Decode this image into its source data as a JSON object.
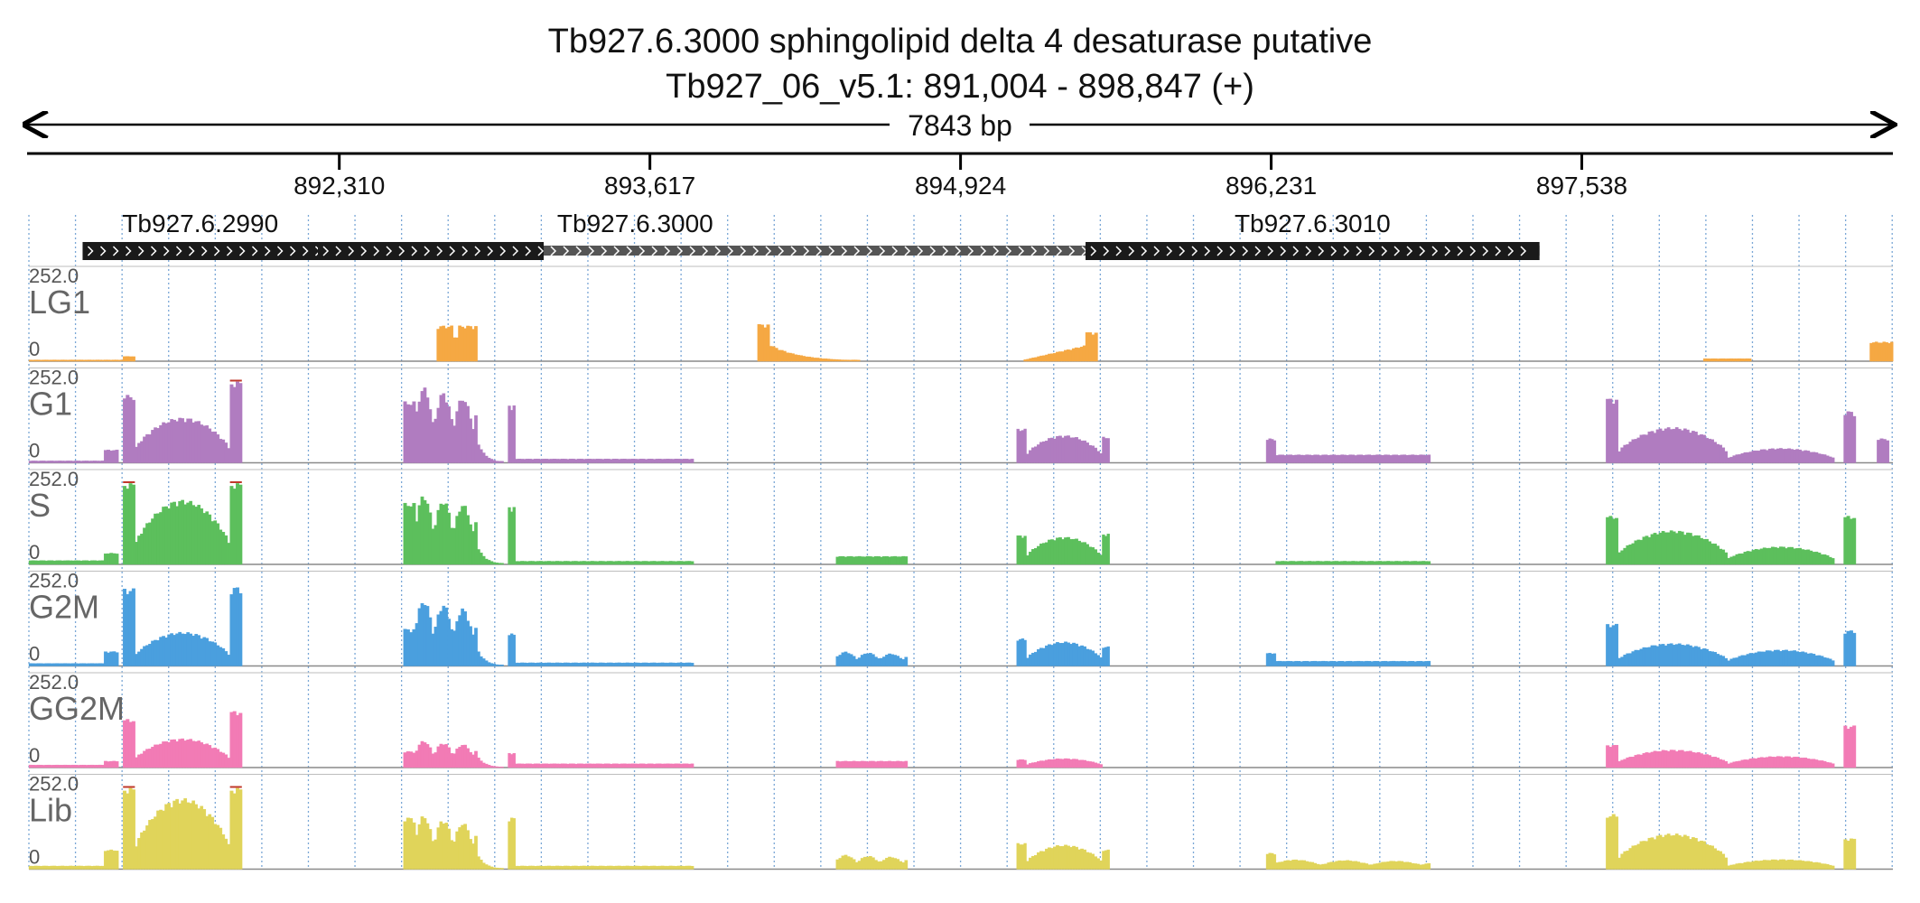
{
  "header": {
    "title": "Tb927.6.3000  sphingolipid delta 4 desaturase  putative",
    "location": "Tb927_06_v5.1: 891,004 - 898,847 (+)",
    "span_label": "7843 bp"
  },
  "ruler": {
    "ticks": [
      "892,310",
      "893,617",
      "894,924",
      "896,231",
      "897,538"
    ],
    "tick_values": [
      892310,
      893617,
      894924,
      896231,
      897538
    ]
  },
  "genes": [
    {
      "name": "Tb927.6.2990",
      "start": 891230,
      "end": 892320,
      "cds_start": 891230,
      "cds_end": 892220,
      "strand": "+"
    },
    {
      "name": "Tb927.6.3000",
      "start": 892220,
      "end": 895690,
      "cds_start": 892220,
      "cds_end": 893170,
      "strand": "+"
    },
    {
      "name": "Tb927.6.3010",
      "start": 895450,
      "end": 897360,
      "cds_start": 895450,
      "cds_end": 897360,
      "strand": "+"
    }
  ],
  "colors": {
    "LG1": "#f5a843",
    "G1": "#b07cc0",
    "S": "#5cbf5c",
    "G2M": "#4a9fde",
    "GG2M": "#f27bb5",
    "Lib": "#e0d45a",
    "gene": "#1a1a1a",
    "utr": "#555555",
    "grid": "#7aa7d6"
  },
  "chart_data": {
    "type": "area",
    "region": {
      "chrom": "Tb927_06_v5.1",
      "start": 891004,
      "end": 898847,
      "strand": "+",
      "length_bp": 7843
    },
    "ylim": [
      0,
      252.0
    ],
    "y_max_label": "252.0",
    "y_min_label": "0",
    "series": [
      {
        "name": "LG1",
        "blocks": [
          {
            "start": 891004,
            "end": 891400,
            "shape": "flat",
            "h": 4
          },
          {
            "start": 891400,
            "end": 891450,
            "shape": "flat",
            "h": 15
          },
          {
            "start": 892720,
            "end": 892890,
            "shape": "notched",
            "h": 110
          },
          {
            "start": 894070,
            "end": 894120,
            "shape": "flat",
            "h": 115
          },
          {
            "start": 894120,
            "end": 894500,
            "shape": "decay",
            "h": 50
          },
          {
            "start": 895190,
            "end": 895450,
            "shape": "rise",
            "h": 48
          },
          {
            "start": 895450,
            "end": 895500,
            "shape": "flat",
            "h": 90
          },
          {
            "start": 898050,
            "end": 898250,
            "shape": "flat",
            "h": 8
          },
          {
            "start": 898750,
            "end": 898847,
            "shape": "flat",
            "h": 60
          }
        ]
      },
      {
        "name": "G1",
        "blocks": [
          {
            "start": 891004,
            "end": 891320,
            "shape": "flat",
            "h": 6
          },
          {
            "start": 891320,
            "end": 891380,
            "shape": "flat",
            "h": 40
          },
          {
            "start": 891400,
            "end": 891450,
            "shape": "flat",
            "h": 210
          },
          {
            "start": 891450,
            "end": 891850,
            "shape": "hump",
            "h": 140
          },
          {
            "start": 891850,
            "end": 891900,
            "shape": "flat",
            "h": 252
          },
          {
            "start": 892580,
            "end": 892630,
            "shape": "flat",
            "h": 190
          },
          {
            "start": 892630,
            "end": 892890,
            "shape": "jagged",
            "h": 240
          },
          {
            "start": 892890,
            "end": 893000,
            "shape": "decay",
            "h": 60
          },
          {
            "start": 893020,
            "end": 893050,
            "shape": "flat",
            "h": 180
          },
          {
            "start": 893050,
            "end": 893800,
            "shape": "flat",
            "h": 12
          },
          {
            "start": 895160,
            "end": 895200,
            "shape": "flat",
            "h": 105
          },
          {
            "start": 895200,
            "end": 895520,
            "shape": "hump",
            "h": 85
          },
          {
            "start": 895520,
            "end": 895550,
            "shape": "flat",
            "h": 80
          },
          {
            "start": 896210,
            "end": 896250,
            "shape": "flat",
            "h": 75
          },
          {
            "start": 896250,
            "end": 896900,
            "shape": "flat",
            "h": 25
          },
          {
            "start": 897640,
            "end": 897690,
            "shape": "flat",
            "h": 200
          },
          {
            "start": 897690,
            "end": 898150,
            "shape": "hump",
            "h": 110
          },
          {
            "start": 898150,
            "end": 898600,
            "shape": "hump",
            "h": 45
          },
          {
            "start": 898640,
            "end": 898690,
            "shape": "flat",
            "h": 160
          },
          {
            "start": 898780,
            "end": 898830,
            "shape": "flat",
            "h": 75
          }
        ]
      },
      {
        "name": "S",
        "blocks": [
          {
            "start": 891004,
            "end": 891320,
            "shape": "flat",
            "h": 12
          },
          {
            "start": 891320,
            "end": 891380,
            "shape": "flat",
            "h": 35
          },
          {
            "start": 891400,
            "end": 891450,
            "shape": "flat",
            "h": 252
          },
          {
            "start": 891450,
            "end": 891850,
            "shape": "hump",
            "h": 200
          },
          {
            "start": 891850,
            "end": 891900,
            "shape": "flat",
            "h": 252
          },
          {
            "start": 892580,
            "end": 892630,
            "shape": "flat",
            "h": 190
          },
          {
            "start": 892630,
            "end": 892890,
            "shape": "jagged",
            "h": 220
          },
          {
            "start": 892890,
            "end": 893000,
            "shape": "decay",
            "h": 50
          },
          {
            "start": 893020,
            "end": 893050,
            "shape": "flat",
            "h": 180
          },
          {
            "start": 893050,
            "end": 893800,
            "shape": "flat",
            "h": 10
          },
          {
            "start": 894400,
            "end": 894700,
            "shape": "flat",
            "h": 25
          },
          {
            "start": 895160,
            "end": 895200,
            "shape": "flat",
            "h": 90
          },
          {
            "start": 895200,
            "end": 895520,
            "shape": "hump",
            "h": 85
          },
          {
            "start": 895520,
            "end": 895550,
            "shape": "flat",
            "h": 95
          },
          {
            "start": 896250,
            "end": 896900,
            "shape": "flat",
            "h": 10
          },
          {
            "start": 897640,
            "end": 897690,
            "shape": "flat",
            "h": 150
          },
          {
            "start": 897690,
            "end": 898150,
            "shape": "hump",
            "h": 105
          },
          {
            "start": 898150,
            "end": 898600,
            "shape": "hump",
            "h": 55
          },
          {
            "start": 898640,
            "end": 898690,
            "shape": "flat",
            "h": 150
          }
        ]
      },
      {
        "name": "G2M",
        "blocks": [
          {
            "start": 891004,
            "end": 891320,
            "shape": "flat",
            "h": 8
          },
          {
            "start": 891320,
            "end": 891380,
            "shape": "flat",
            "h": 45
          },
          {
            "start": 891400,
            "end": 891450,
            "shape": "flat",
            "h": 240
          },
          {
            "start": 891450,
            "end": 891850,
            "shape": "hump",
            "h": 105
          },
          {
            "start": 891850,
            "end": 891900,
            "shape": "flat",
            "h": 245
          },
          {
            "start": 892580,
            "end": 892630,
            "shape": "flat",
            "h": 115
          },
          {
            "start": 892630,
            "end": 892890,
            "shape": "jagged",
            "h": 210
          },
          {
            "start": 892890,
            "end": 893000,
            "shape": "decay",
            "h": 45
          },
          {
            "start": 893020,
            "end": 893050,
            "shape": "flat",
            "h": 100
          },
          {
            "start": 893050,
            "end": 893800,
            "shape": "flat",
            "h": 10
          },
          {
            "start": 894400,
            "end": 894700,
            "shape": "jagged",
            "h": 45
          },
          {
            "start": 895160,
            "end": 895200,
            "shape": "flat",
            "h": 85
          },
          {
            "start": 895200,
            "end": 895520,
            "shape": "hump",
            "h": 75
          },
          {
            "start": 895520,
            "end": 895550,
            "shape": "flat",
            "h": 60
          },
          {
            "start": 896210,
            "end": 896250,
            "shape": "flat",
            "h": 40
          },
          {
            "start": 896250,
            "end": 896900,
            "shape": "flat",
            "h": 15
          },
          {
            "start": 897640,
            "end": 897690,
            "shape": "flat",
            "h": 130
          },
          {
            "start": 897690,
            "end": 898150,
            "shape": "hump",
            "h": 70
          },
          {
            "start": 898150,
            "end": 898600,
            "shape": "hump",
            "h": 50
          },
          {
            "start": 898640,
            "end": 898690,
            "shape": "flat",
            "h": 110
          }
        ]
      },
      {
        "name": "GG2M",
        "blocks": [
          {
            "start": 891004,
            "end": 891320,
            "shape": "flat",
            "h": 8
          },
          {
            "start": 891320,
            "end": 891380,
            "shape": "flat",
            "h": 20
          },
          {
            "start": 891400,
            "end": 891450,
            "shape": "flat",
            "h": 150
          },
          {
            "start": 891450,
            "end": 891850,
            "shape": "hump",
            "h": 90
          },
          {
            "start": 891850,
            "end": 891900,
            "shape": "flat",
            "h": 175
          },
          {
            "start": 892580,
            "end": 892630,
            "shape": "flat",
            "h": 50
          },
          {
            "start": 892630,
            "end": 892890,
            "shape": "jagged",
            "h": 85
          },
          {
            "start": 892890,
            "end": 893000,
            "shape": "decay",
            "h": 30
          },
          {
            "start": 893020,
            "end": 893050,
            "shape": "flat",
            "h": 45
          },
          {
            "start": 893050,
            "end": 893800,
            "shape": "flat",
            "h": 12
          },
          {
            "start": 894400,
            "end": 894700,
            "shape": "flat",
            "h": 20
          },
          {
            "start": 895160,
            "end": 895200,
            "shape": "flat",
            "h": 25
          },
          {
            "start": 895200,
            "end": 895520,
            "shape": "hump",
            "h": 28
          },
          {
            "start": 897640,
            "end": 897690,
            "shape": "flat",
            "h": 70
          },
          {
            "start": 897690,
            "end": 898150,
            "shape": "hump",
            "h": 55
          },
          {
            "start": 898150,
            "end": 898600,
            "shape": "hump",
            "h": 35
          },
          {
            "start": 898640,
            "end": 898690,
            "shape": "flat",
            "h": 130
          }
        ]
      },
      {
        "name": "Lib",
        "blocks": [
          {
            "start": 891004,
            "end": 891320,
            "shape": "flat",
            "h": 10
          },
          {
            "start": 891320,
            "end": 891380,
            "shape": "flat",
            "h": 60
          },
          {
            "start": 891400,
            "end": 891450,
            "shape": "flat",
            "h": 252
          },
          {
            "start": 891450,
            "end": 891850,
            "shape": "hump",
            "h": 220
          },
          {
            "start": 891850,
            "end": 891900,
            "shape": "flat",
            "h": 252
          },
          {
            "start": 892580,
            "end": 892630,
            "shape": "flat",
            "h": 160
          },
          {
            "start": 892630,
            "end": 892890,
            "shape": "jagged",
            "h": 170
          },
          {
            "start": 892890,
            "end": 893000,
            "shape": "decay",
            "h": 40
          },
          {
            "start": 893020,
            "end": 893050,
            "shape": "flat",
            "h": 160
          },
          {
            "start": 893050,
            "end": 893800,
            "shape": "flat",
            "h": 10
          },
          {
            "start": 894400,
            "end": 894700,
            "shape": "jagged",
            "h": 45
          },
          {
            "start": 895160,
            "end": 895200,
            "shape": "flat",
            "h": 80
          },
          {
            "start": 895200,
            "end": 895520,
            "shape": "hump",
            "h": 75
          },
          {
            "start": 895520,
            "end": 895550,
            "shape": "flat",
            "h": 60
          },
          {
            "start": 896210,
            "end": 896250,
            "shape": "flat",
            "h": 50
          },
          {
            "start": 896250,
            "end": 896900,
            "shape": "jagged",
            "h": 30
          },
          {
            "start": 897640,
            "end": 897690,
            "shape": "flat",
            "h": 170
          },
          {
            "start": 897690,
            "end": 898150,
            "shape": "hump",
            "h": 110
          },
          {
            "start": 898150,
            "end": 898600,
            "shape": "hump",
            "h": 30
          },
          {
            "start": 898640,
            "end": 898690,
            "shape": "flat",
            "h": 95
          }
        ]
      }
    ]
  }
}
